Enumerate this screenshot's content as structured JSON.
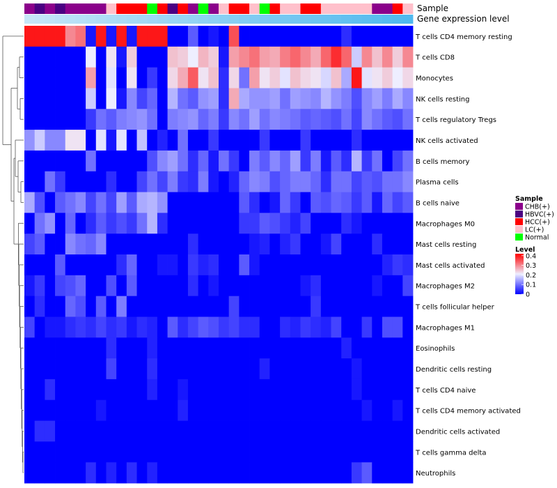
{
  "chart_data": {
    "type": "heatmap",
    "annotation_tracks": [
      "Sample",
      "Gene expression level"
    ],
    "legend": {
      "sample_title": "Sample",
      "sample_items": [
        {
          "label": "CHB(+)",
          "color": "#8B008B"
        },
        {
          "label": "HBVC(+)",
          "color": "#4B0082"
        },
        {
          "label": "HCC(+)",
          "color": "#FF0000"
        },
        {
          "label": "LC(+)",
          "color": "#FFC0CB"
        },
        {
          "label": "Normal",
          "color": "#00FF00"
        }
      ],
      "level_title": "Level",
      "level_ticks": [
        "0.4",
        "0.3",
        "0.2",
        "0.1",
        "0"
      ],
      "level_tick_values": [
        0.4,
        0.3,
        0.2,
        0.1,
        0
      ],
      "level_range": [
        0,
        0.42
      ]
    },
    "colors": {
      "low": "#0000FF",
      "mid": "#EEEEFF",
      "high": "#FF0000",
      "gene_bar_start": "#C6E6F8",
      "gene_bar_end": "#4FB9EE"
    },
    "samples": [
      "CHB(+)",
      "HBVC(+)",
      "CHB(+)",
      "HBVC(+)",
      "CHB(+)",
      "CHB(+)",
      "CHB(+)",
      "CHB(+)",
      "LC(+)",
      "HCC(+)",
      "HCC(+)",
      "HCC(+)",
      "Normal",
      "HCC(+)",
      "HBVC(+)",
      "HCC(+)",
      "CHB(+)",
      "Normal",
      "CHB(+)",
      "LC(+)",
      "HCC(+)",
      "HCC(+)",
      "LC(+)",
      "Normal",
      "HCC(+)",
      "LC(+)",
      "LC(+)",
      "HCC(+)",
      "HCC(+)",
      "LC(+)",
      "LC(+)",
      "LC(+)",
      "LC(+)",
      "LC(+)",
      "CHB(+)",
      "CHB(+)",
      "HCC(+)",
      "LC(+)"
    ],
    "rows": [
      {
        "label": "T cells CD4 memory resting",
        "values": [
          0.4,
          0.4,
          0.4,
          0.4,
          0.3,
          0.32,
          0.02,
          0.4,
          0.02,
          0.4,
          0.02,
          0.4,
          0.4,
          0.4,
          0.0,
          0.0,
          0.08,
          0.0,
          0.02,
          0.0,
          0.35,
          0.0,
          0.0,
          0.0,
          0.0,
          0.0,
          0.0,
          0.0,
          0.0,
          0.0,
          0.0,
          0.04,
          0.0,
          0.0,
          0.0,
          0.0,
          0.0,
          0.0
        ]
      },
      {
        "label": "T cells CD8",
        "values": [
          0.0,
          0.0,
          0.0,
          0.0,
          0.0,
          0.0,
          0.21,
          0.0,
          0.22,
          0.02,
          0.24,
          0.0,
          0.0,
          0.0,
          0.25,
          0.24,
          0.21,
          0.26,
          0.24,
          0.02,
          0.28,
          0.3,
          0.32,
          0.28,
          0.27,
          0.31,
          0.33,
          0.3,
          0.27,
          0.33,
          0.38,
          0.33,
          0.18,
          0.3,
          0.25,
          0.3,
          0.24,
          0.3
        ]
      },
      {
        "label": "Monocytes",
        "values": [
          0.0,
          0.0,
          0.0,
          0.0,
          0.0,
          0.0,
          0.28,
          0.0,
          0.2,
          0.0,
          0.22,
          0.0,
          0.05,
          0.0,
          0.23,
          0.27,
          0.34,
          0.22,
          0.25,
          0.04,
          0.23,
          0.1,
          0.28,
          0.22,
          0.24,
          0.2,
          0.25,
          0.23,
          0.22,
          0.19,
          0.25,
          0.15,
          0.4,
          0.2,
          0.22,
          0.24,
          0.21,
          0.23
        ]
      },
      {
        "label": "NK cells resting",
        "values": [
          0.0,
          0.0,
          0.0,
          0.0,
          0.0,
          0.0,
          0.18,
          0.0,
          0.21,
          0.02,
          0.12,
          0.06,
          0.09,
          0.0,
          0.16,
          0.1,
          0.08,
          0.13,
          0.14,
          0.04,
          0.27,
          0.15,
          0.13,
          0.13,
          0.14,
          0.1,
          0.14,
          0.13,
          0.12,
          0.16,
          0.13,
          0.11,
          0.07,
          0.12,
          0.14,
          0.11,
          0.15,
          0.12
        ]
      },
      {
        "label": "T cells regulatory  Tregs",
        "values": [
          0.0,
          0.0,
          0.0,
          0.0,
          0.0,
          0.0,
          0.05,
          0.1,
          0.08,
          0.11,
          0.12,
          0.13,
          0.1,
          0.0,
          0.11,
          0.12,
          0.13,
          0.09,
          0.11,
          0.05,
          0.12,
          0.1,
          0.14,
          0.1,
          0.12,
          0.11,
          0.1,
          0.08,
          0.09,
          0.08,
          0.07,
          0.1,
          0.06,
          0.12,
          0.1,
          0.08,
          0.07,
          0.1
        ]
      },
      {
        "label": "NK cells activated",
        "values": [
          0.13,
          0.18,
          0.12,
          0.12,
          0.22,
          0.22,
          0.0,
          0.2,
          0.02,
          0.2,
          0.0,
          0.17,
          0.0,
          0.03,
          0.0,
          0.1,
          0.0,
          0.0,
          0.05,
          0.0,
          0.0,
          0.0,
          0.0,
          0.05,
          0.0,
          0.0,
          0.0,
          0.05,
          0.0,
          0.0,
          0.0,
          0.0,
          0.04,
          0.0,
          0.0,
          0.0,
          0.0,
          0.0
        ]
      },
      {
        "label": "B cells memory",
        "values": [
          0.0,
          0.0,
          0.0,
          0.0,
          0.0,
          0.0,
          0.1,
          0.0,
          0.0,
          0.0,
          0.0,
          0.0,
          0.07,
          0.12,
          0.14,
          0.1,
          0.04,
          0.09,
          0.02,
          0.1,
          0.05,
          0.0,
          0.11,
          0.08,
          0.12,
          0.09,
          0.14,
          0.05,
          0.11,
          0.02,
          0.08,
          0.04,
          0.16,
          0.05,
          0.1,
          0.0,
          0.06,
          0.1
        ]
      },
      {
        "label": "Plasma cells",
        "values": [
          0.0,
          0.0,
          0.1,
          0.05,
          0.0,
          0.0,
          0.0,
          0.0,
          0.04,
          0.0,
          0.0,
          0.06,
          0.1,
          0.06,
          0.11,
          0.05,
          0.04,
          0.11,
          0.02,
          0.0,
          0.03,
          0.09,
          0.12,
          0.11,
          0.07,
          0.09,
          0.11,
          0.11,
          0.09,
          0.04,
          0.1,
          0.1,
          0.06,
          0.08,
          0.07,
          0.1,
          0.1,
          0.12
        ]
      },
      {
        "label": "B cells naive",
        "values": [
          0.15,
          0.07,
          0.0,
          0.08,
          0.1,
          0.12,
          0.06,
          0.1,
          0.06,
          0.14,
          0.08,
          0.15,
          0.16,
          0.13,
          0.0,
          0.0,
          0.0,
          0.0,
          0.0,
          0.0,
          0.0,
          0.08,
          0.04,
          0.0,
          0.02,
          0.09,
          0.05,
          0.0,
          0.08,
          0.07,
          0.09,
          0.08,
          0.05,
          0.08,
          0.02,
          0.09,
          0.06,
          0.08
        ]
      },
      {
        "label": "Macrophages M0",
        "values": [
          0.0,
          0.1,
          0.13,
          0.0,
          0.09,
          0.0,
          0.04,
          0.08,
          0.05,
          0.07,
          0.05,
          0.1,
          0.16,
          0.04,
          0.0,
          0.0,
          0.0,
          0.0,
          0.0,
          0.0,
          0.0,
          0.05,
          0.05,
          0.08,
          0.07,
          0.05,
          0.03,
          0.06,
          0.0,
          0.0,
          0.0,
          0.04,
          0.02,
          0.0,
          0.0,
          0.0,
          0.0,
          0.0
        ]
      },
      {
        "label": "Mast cells resting",
        "values": [
          0.06,
          0.08,
          0.0,
          0.0,
          0.12,
          0.1,
          0.09,
          0.12,
          0.0,
          0.0,
          0.0,
          0.0,
          0.0,
          0.0,
          0.0,
          0.0,
          0.04,
          0.0,
          0.0,
          0.0,
          0.0,
          0.0,
          0.02,
          0.03,
          0.0,
          0.03,
          0.05,
          0.0,
          0.0,
          0.02,
          0.06,
          0.0,
          0.0,
          0.0,
          0.04,
          0.0,
          0.0,
          0.0
        ]
      },
      {
        "label": "Mast cells activated",
        "values": [
          0.0,
          0.0,
          0.0,
          0.08,
          0.0,
          0.0,
          0.0,
          0.0,
          0.0,
          0.04,
          0.09,
          0.0,
          0.0,
          0.02,
          0.02,
          0.0,
          0.05,
          0.03,
          0.04,
          0.0,
          0.0,
          0.08,
          0.02,
          0.0,
          0.0,
          0.0,
          0.0,
          0.0,
          0.0,
          0.0,
          0.0,
          0.0,
          0.0,
          0.0,
          0.0,
          0.03,
          0.05,
          0.04
        ]
      },
      {
        "label": "Macrophages M2",
        "values": [
          0.02,
          0.05,
          0.0,
          0.06,
          0.07,
          0.09,
          0.0,
          0.0,
          0.07,
          0.0,
          0.08,
          0.0,
          0.0,
          0.0,
          0.0,
          0.0,
          0.04,
          0.0,
          0.02,
          0.0,
          0.0,
          0.0,
          0.0,
          0.0,
          0.0,
          0.0,
          0.0,
          0.02,
          0.04,
          0.0,
          0.0,
          0.0,
          0.0,
          0.0,
          0.02,
          0.0,
          0.0,
          0.06
        ]
      },
      {
        "label": "T cells follicular helper",
        "values": [
          0.0,
          0.04,
          0.0,
          0.0,
          0.09,
          0.07,
          0.0,
          0.08,
          0.0,
          0.11,
          0.0,
          0.0,
          0.0,
          0.0,
          0.0,
          0.0,
          0.0,
          0.0,
          0.0,
          0.0,
          0.06,
          0.0,
          0.0,
          0.0,
          0.0,
          0.0,
          0.0,
          0.0,
          0.05,
          0.0,
          0.0,
          0.0,
          0.0,
          0.0,
          0.0,
          0.0,
          0.0,
          0.0
        ]
      },
      {
        "label": "Macrophages M1",
        "values": [
          0.06,
          0.0,
          0.02,
          0.02,
          0.04,
          0.05,
          0.04,
          0.06,
          0.04,
          0.05,
          0.02,
          0.04,
          0.03,
          0.0,
          0.08,
          0.04,
          0.06,
          0.08,
          0.07,
          0.05,
          0.06,
          0.04,
          0.04,
          0.0,
          0.0,
          0.04,
          0.03,
          0.05,
          0.04,
          0.03,
          0.06,
          0.0,
          0.0,
          0.05,
          0.0,
          0.07,
          0.07,
          0.0
        ]
      },
      {
        "label": "Eosinophils",
        "values": [
          0.0,
          0.0,
          0.0,
          0.0,
          0.0,
          0.0,
          0.0,
          0.0,
          0.04,
          0.0,
          0.0,
          0.0,
          0.03,
          0.0,
          0.0,
          0.0,
          0.0,
          0.0,
          0.0,
          0.0,
          0.0,
          0.0,
          0.0,
          0.0,
          0.0,
          0.0,
          0.0,
          0.0,
          0.0,
          0.0,
          0.0,
          0.03,
          0.0,
          0.0,
          0.0,
          0.0,
          0.0,
          0.0
        ]
      },
      {
        "label": "Dendritic cells resting",
        "values": [
          0.0,
          0.0,
          0.0,
          0.0,
          0.0,
          0.0,
          0.0,
          0.0,
          0.06,
          0.0,
          0.0,
          0.0,
          0.04,
          0.0,
          0.0,
          0.0,
          0.0,
          0.0,
          0.0,
          0.0,
          0.0,
          0.0,
          0.0,
          0.03,
          0.0,
          0.0,
          0.0,
          0.0,
          0.0,
          0.0,
          0.0,
          0.0,
          0.02,
          0.0,
          0.0,
          0.0,
          0.0,
          0.0
        ]
      },
      {
        "label": "T cells CD4 naive",
        "values": [
          0.0,
          0.0,
          0.04,
          0.0,
          0.0,
          0.0,
          0.0,
          0.0,
          0.0,
          0.0,
          0.0,
          0.0,
          0.03,
          0.0,
          0.0,
          0.02,
          0.0,
          0.0,
          0.0,
          0.0,
          0.0,
          0.0,
          0.0,
          0.0,
          0.0,
          0.0,
          0.0,
          0.0,
          0.0,
          0.0,
          0.0,
          0.0,
          0.02,
          0.0,
          0.0,
          0.0,
          0.0,
          0.0
        ]
      },
      {
        "label": "T cells CD4 memory activated",
        "values": [
          0.0,
          0.0,
          0.0,
          0.0,
          0.0,
          0.0,
          0.0,
          0.02,
          0.0,
          0.0,
          0.0,
          0.0,
          0.0,
          0.0,
          0.0,
          0.03,
          0.0,
          0.0,
          0.0,
          0.0,
          0.0,
          0.0,
          0.0,
          0.0,
          0.0,
          0.0,
          0.0,
          0.0,
          0.0,
          0.0,
          0.0,
          0.0,
          0.0,
          0.02,
          0.0,
          0.0,
          0.02,
          0.0
        ]
      },
      {
        "label": "Dendritic cells activated",
        "values": [
          0.0,
          0.04,
          0.04,
          0.0,
          0.0,
          0.0,
          0.0,
          0.0,
          0.0,
          0.0,
          0.0,
          0.0,
          0.0,
          0.0,
          0.0,
          0.0,
          0.0,
          0.0,
          0.0,
          0.0,
          0.0,
          0.0,
          0.0,
          0.0,
          0.0,
          0.0,
          0.0,
          0.0,
          0.0,
          0.0,
          0.0,
          0.0,
          0.0,
          0.0,
          0.0,
          0.0,
          0.0,
          0.0
        ]
      },
      {
        "label": "T cells gamma delta",
        "values": [
          0.0,
          0.0,
          0.0,
          0.0,
          0.0,
          0.0,
          0.0,
          0.0,
          0.0,
          0.0,
          0.0,
          0.0,
          0.0,
          0.0,
          0.0,
          0.0,
          0.0,
          0.0,
          0.0,
          0.0,
          0.0,
          0.0,
          0.0,
          0.0,
          0.0,
          0.0,
          0.0,
          0.0,
          0.0,
          0.0,
          0.0,
          0.0,
          0.0,
          0.0,
          0.0,
          0.0,
          0.0,
          0.0
        ]
      },
      {
        "label": "Neutrophils",
        "values": [
          0.0,
          0.0,
          0.0,
          0.0,
          0.0,
          0.0,
          0.04,
          0.0,
          0.03,
          0.0,
          0.04,
          0.0,
          0.03,
          0.0,
          0.0,
          0.0,
          0.0,
          0.0,
          0.0,
          0.0,
          0.0,
          0.0,
          0.0,
          0.0,
          0.0,
          0.0,
          0.0,
          0.0,
          0.0,
          0.0,
          0.0,
          0.0,
          0.05,
          0.08,
          0.0,
          0.0,
          0.0,
          0.0
        ]
      }
    ]
  }
}
